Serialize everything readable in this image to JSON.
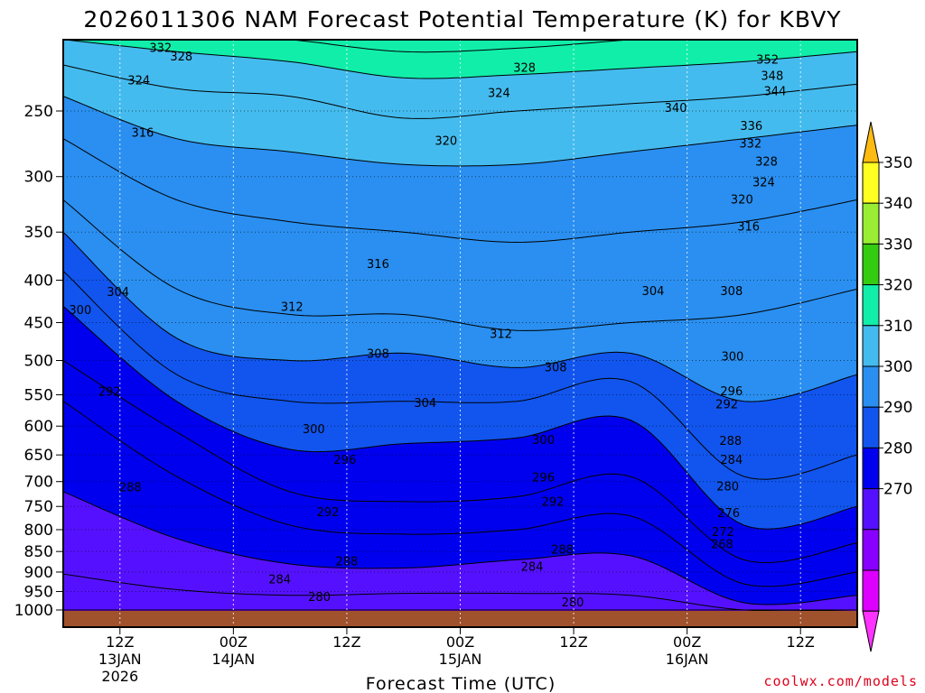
{
  "chart_data": {
    "type": "heatmap",
    "title": "2026011306 NAM Forecast Potential Temperature (K) for KBVY",
    "xlabel": "Forecast Time (UTC)",
    "ylabel": "",
    "credit": "coolwx.com/models",
    "y_ticks": [
      "250",
      "300",
      "350",
      "400",
      "450",
      "500",
      "550",
      "600",
      "650",
      "700",
      "750",
      "800",
      "850",
      "900",
      "950",
      "1000"
    ],
    "y_values": [
      250,
      300,
      350,
      400,
      450,
      500,
      550,
      600,
      650,
      700,
      750,
      800,
      850,
      900,
      950,
      1000
    ],
    "ylim": [
      1000,
      200
    ],
    "x_hours": [
      0,
      12,
      24,
      36,
      48,
      60,
      72,
      84
    ],
    "x_ticks": [
      {
        "hour": 6,
        "l1": "12Z",
        "l2": "13JAN",
        "l3": "2026"
      },
      {
        "hour": 18,
        "l1": "00Z",
        "l2": "14JAN",
        "l3": ""
      },
      {
        "hour": 30,
        "l1": "12Z",
        "l2": "",
        "l3": ""
      },
      {
        "hour": 42,
        "l1": "00Z",
        "l2": "15JAN",
        "l3": ""
      },
      {
        "hour": 54,
        "l1": "12Z",
        "l2": "",
        "l3": ""
      },
      {
        "hour": 66,
        "l1": "00Z",
        "l2": "16JAN",
        "l3": ""
      },
      {
        "hour": 78,
        "l1": "12Z",
        "l2": "",
        "l3": ""
      }
    ],
    "xlim": [
      0,
      84
    ],
    "colorbar": {
      "labels": [
        "350",
        "340",
        "330",
        "320",
        "310",
        "300",
        "290",
        "280",
        "270"
      ],
      "levels": [
        260,
        270,
        280,
        290,
        300,
        310,
        320,
        330,
        340,
        350,
        360
      ],
      "colors": [
        "#ff33ff",
        "#dd00ff",
        "#8800ff",
        "#5511ff",
        "#0000ee",
        "#1155ee",
        "#2a8ff0",
        "#44bbee",
        "#11eeaa",
        "#33cc11",
        "#99ee33",
        "#ffff22",
        "#ffbb11"
      ]
    },
    "contour_interval": 4,
    "isentropes": {
      "levels": [
        268,
        272,
        276,
        280,
        284,
        288,
        292,
        296,
        300,
        304,
        308,
        312,
        316,
        320,
        324,
        328,
        332,
        336,
        340,
        344,
        348,
        352
      ],
      "pressure_by_hour": {
        "268": [
          1050,
          1050,
          1050,
          1050,
          1050,
          1050,
          1050,
          1050
        ],
        "272": [
          1050,
          1050,
          1050,
          1050,
          1050,
          1050,
          1050,
          1050
        ],
        "276": [
          1050,
          1050,
          1050,
          1050,
          1050,
          1050,
          1050,
          1050
        ],
        "280": [
          1000,
          1000,
          1000,
          1000,
          1000,
          1000,
          1000,
          1000
        ],
        "284": [
          905,
          945,
          960,
          955,
          955,
          960,
          1000,
          1000
        ],
        "288": [
          720,
          820,
          880,
          890,
          870,
          860,
          980,
          960
        ],
        "292": [
          560,
          690,
          790,
          810,
          800,
          770,
          930,
          900
        ],
        "296": [
          500,
          610,
          720,
          740,
          730,
          690,
          870,
          830
        ],
        "300": [
          430,
          560,
          640,
          630,
          620,
          590,
          790,
          750
        ],
        "304": [
          390,
          520,
          560,
          560,
          560,
          530,
          690,
          650
        ],
        "308": [
          350,
          470,
          500,
          490,
          510,
          490,
          560,
          520
        ],
        "312": [
          320,
          410,
          440,
          440,
          460,
          450,
          440,
          410
        ],
        "316": [
          270,
          320,
          340,
          350,
          360,
          350,
          340,
          320
        ],
        "320": [
          240,
          270,
          280,
          290,
          290,
          280,
          270,
          260
        ],
        "324": [
          220,
          235,
          240,
          255,
          250,
          245,
          240,
          232
        ],
        "328": [
          205,
          212,
          218,
          228,
          226,
          222,
          218,
          212
        ],
        "332": [
          195,
          200,
          205,
          212,
          210,
          205,
          200,
          195
        ],
        "336": [
          185,
          190,
          195,
          200,
          198,
          195,
          190,
          186
        ],
        "340": [
          180,
          182,
          186,
          190,
          190,
          185,
          182,
          180
        ],
        "344": [
          175,
          178,
          180,
          182,
          184,
          180,
          178,
          176
        ],
        "348": [
          172,
          174,
          176,
          178,
          180,
          176,
          174,
          172
        ],
        "352": [
          170,
          170,
          172,
          174,
          176,
          172,
          170,
          170
        ]
      }
    },
    "contour_labels": [
      {
        "value": "332",
        "hour": 10.3,
        "p": 210
      },
      {
        "value": "328",
        "hour": 12.5,
        "p": 215
      },
      {
        "value": "324",
        "hour": 8.0,
        "p": 230
      },
      {
        "value": "316",
        "hour": 8.4,
        "p": 266
      },
      {
        "value": "320",
        "hour": 40.5,
        "p": 272
      },
      {
        "value": "328",
        "hour": 48.8,
        "p": 222
      },
      {
        "value": "324",
        "hour": 46.1,
        "p": 238
      },
      {
        "value": "352",
        "hour": 74.5,
        "p": 217
      },
      {
        "value": "348",
        "hour": 75.0,
        "p": 227
      },
      {
        "value": "344",
        "hour": 75.3,
        "p": 237
      },
      {
        "value": "340",
        "hour": 64.8,
        "p": 248
      },
      {
        "value": "336",
        "hour": 72.8,
        "p": 261
      },
      {
        "value": "332",
        "hour": 72.7,
        "p": 274
      },
      {
        "value": "328",
        "hour": 74.4,
        "p": 288
      },
      {
        "value": "324",
        "hour": 74.1,
        "p": 305
      },
      {
        "value": "320",
        "hour": 71.8,
        "p": 320
      },
      {
        "value": "316",
        "hour": 72.5,
        "p": 345
      },
      {
        "value": "316",
        "hour": 33.3,
        "p": 383
      },
      {
        "value": "312",
        "hour": 24.2,
        "p": 431
      },
      {
        "value": "308",
        "hour": 33.3,
        "p": 491
      },
      {
        "value": "312",
        "hour": 46.3,
        "p": 465
      },
      {
        "value": "308",
        "hour": 52.1,
        "p": 510
      },
      {
        "value": "304",
        "hour": 5.8,
        "p": 414
      },
      {
        "value": "304",
        "hour": 62.4,
        "p": 413
      },
      {
        "value": "308",
        "hour": 70.7,
        "p": 413
      },
      {
        "value": "300",
        "hour": 1.8,
        "p": 435
      },
      {
        "value": "304",
        "hour": 38.3,
        "p": 563
      },
      {
        "value": "300",
        "hour": 26.5,
        "p": 606
      },
      {
        "value": "300",
        "hour": 50.8,
        "p": 624
      },
      {
        "value": "300",
        "hour": 70.8,
        "p": 495
      },
      {
        "value": "296",
        "hour": 70.7,
        "p": 545
      },
      {
        "value": "292",
        "hour": 70.2,
        "p": 565
      },
      {
        "value": "292",
        "hour": 4.9,
        "p": 546
      },
      {
        "value": "296",
        "hour": 29.8,
        "p": 660
      },
      {
        "value": "296",
        "hour": 50.8,
        "p": 693
      },
      {
        "value": "292",
        "hour": 51.8,
        "p": 741
      },
      {
        "value": "288",
        "hour": 70.6,
        "p": 626
      },
      {
        "value": "284",
        "hour": 70.7,
        "p": 660
      },
      {
        "value": "280",
        "hour": 70.3,
        "p": 710
      },
      {
        "value": "276",
        "hour": 70.4,
        "p": 765
      },
      {
        "value": "272",
        "hour": 69.8,
        "p": 806
      },
      {
        "value": "268",
        "hour": 69.7,
        "p": 834
      },
      {
        "value": "288",
        "hour": 7.1,
        "p": 712
      },
      {
        "value": "292",
        "hour": 28.0,
        "p": 763
      },
      {
        "value": "288",
        "hour": 30.0,
        "p": 875
      },
      {
        "value": "288",
        "hour": 52.8,
        "p": 846
      },
      {
        "value": "284",
        "hour": 49.6,
        "p": 888
      },
      {
        "value": "284",
        "hour": 22.9,
        "p": 920
      },
      {
        "value": "280",
        "hour": 27.1,
        "p": 966
      },
      {
        "value": "280",
        "hour": 53.9,
        "p": 980
      }
    ]
  }
}
